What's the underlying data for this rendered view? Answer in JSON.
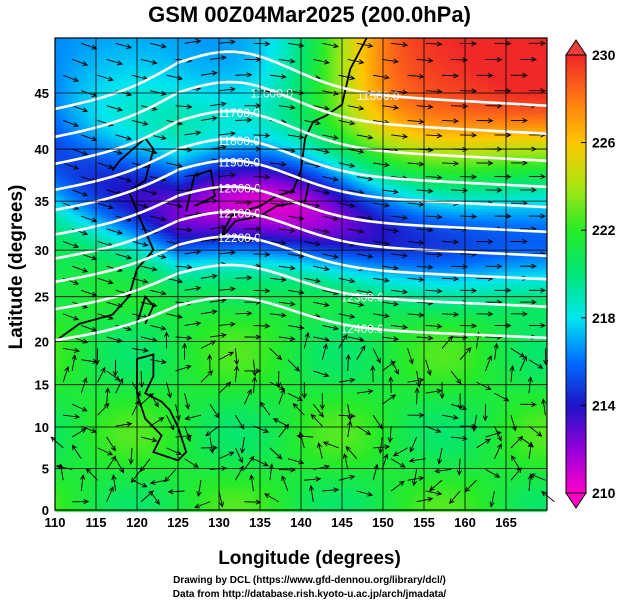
{
  "chart_data": {
    "type": "heatmap",
    "title": "GSM 00Z04Mar2025 (200.0hPa)",
    "xlabel": "Longitude (degrees)",
    "ylabel": "Latitude  (degrees)",
    "xlim": [
      110,
      170
    ],
    "ylim": [
      0,
      50
    ],
    "xticks": [
      "110",
      "115",
      "120",
      "125",
      "130",
      "135",
      "140",
      "145",
      "150",
      "155",
      "160",
      "165"
    ],
    "yticks": [
      "0",
      "5",
      "10",
      "15",
      "20",
      "25",
      "30",
      "35",
      "40",
      "45"
    ],
    "grid": true,
    "shaded_variable_range": [
      210,
      230
    ],
    "colorbar_ticks": [
      "230",
      "226",
      "222",
      "218",
      "214",
      "210"
    ],
    "contour_labels": [
      "11500.0",
      "11600.0",
      "11700.0",
      "11800.0",
      "11900.0",
      "12000.0",
      "12100.0",
      "12200.0",
      "12300.0",
      "12400.0"
    ],
    "contour_levels": [
      11500,
      11600,
      11700,
      11800,
      11900,
      12000,
      12100,
      12200,
      12300,
      12400
    ],
    "overlay": "wind streamline arrows"
  },
  "footer": {
    "line1": "Drawing by DCL (https://www.gfd-dennou.org/library/dcl/)",
    "line2": "Data from http://database.rish.kyoto-u.ac.jp/arch/jmadata/"
  }
}
